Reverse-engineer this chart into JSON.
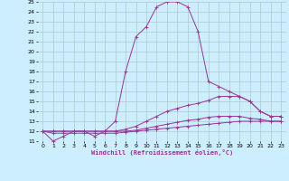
{
  "background_color": "#cceeff",
  "grid_color": "#aacccc",
  "line_color": "#993399",
  "xlim": [
    -0.5,
    23.5
  ],
  "ylim": [
    11,
    25
  ],
  "xlabel": "Windchill (Refroidissement éolien,°C)",
  "x_ticks": [
    0,
    1,
    2,
    3,
    4,
    5,
    6,
    7,
    8,
    9,
    10,
    11,
    12,
    13,
    14,
    15,
    16,
    17,
    18,
    19,
    20,
    21,
    22,
    23
  ],
  "y_ticks": [
    11,
    12,
    13,
    14,
    15,
    16,
    17,
    18,
    19,
    20,
    21,
    22,
    23,
    24,
    25
  ],
  "line1_x": [
    0,
    1,
    2,
    3,
    4,
    5,
    6,
    7,
    8,
    9,
    10,
    11,
    12,
    13,
    14,
    15,
    16,
    17,
    18,
    19,
    20,
    21,
    22,
    23
  ],
  "line1_y": [
    12,
    11,
    11.5,
    12,
    12,
    11.5,
    12,
    13,
    18,
    21.5,
    22.5,
    24.5,
    25,
    25,
    24.5,
    22,
    17,
    16.5,
    16,
    15.5,
    15,
    14,
    13.5,
    13.5
  ],
  "line2_x": [
    0,
    1,
    2,
    3,
    4,
    5,
    6,
    7,
    8,
    9,
    10,
    11,
    12,
    13,
    14,
    15,
    16,
    17,
    18,
    19,
    20,
    21,
    22,
    23
  ],
  "line2_y": [
    12,
    12,
    12,
    12,
    12,
    12,
    12,
    12,
    12.2,
    12.5,
    13.0,
    13.5,
    14.0,
    14.3,
    14.6,
    14.8,
    15.1,
    15.5,
    15.5,
    15.5,
    15.0,
    14.0,
    13.5,
    13.5
  ],
  "line3_x": [
    0,
    1,
    2,
    3,
    4,
    5,
    6,
    7,
    8,
    9,
    10,
    11,
    12,
    13,
    14,
    15,
    16,
    17,
    18,
    19,
    20,
    21,
    22,
    23
  ],
  "line3_y": [
    12,
    12,
    12,
    12,
    12,
    12,
    12,
    12,
    12.0,
    12.1,
    12.3,
    12.5,
    12.7,
    12.9,
    13.1,
    13.2,
    13.4,
    13.5,
    13.5,
    13.5,
    13.3,
    13.2,
    13.0,
    13.0
  ],
  "line4_x": [
    0,
    1,
    2,
    3,
    4,
    5,
    6,
    7,
    8,
    9,
    10,
    11,
    12,
    13,
    14,
    15,
    16,
    17,
    18,
    19,
    20,
    21,
    22,
    23
  ],
  "line4_y": [
    12,
    11.8,
    11.8,
    11.8,
    11.8,
    11.8,
    11.8,
    11.8,
    11.9,
    12.0,
    12.1,
    12.2,
    12.3,
    12.4,
    12.5,
    12.6,
    12.7,
    12.8,
    12.9,
    13.0,
    13.0,
    13.0,
    13.0,
    13.0
  ]
}
